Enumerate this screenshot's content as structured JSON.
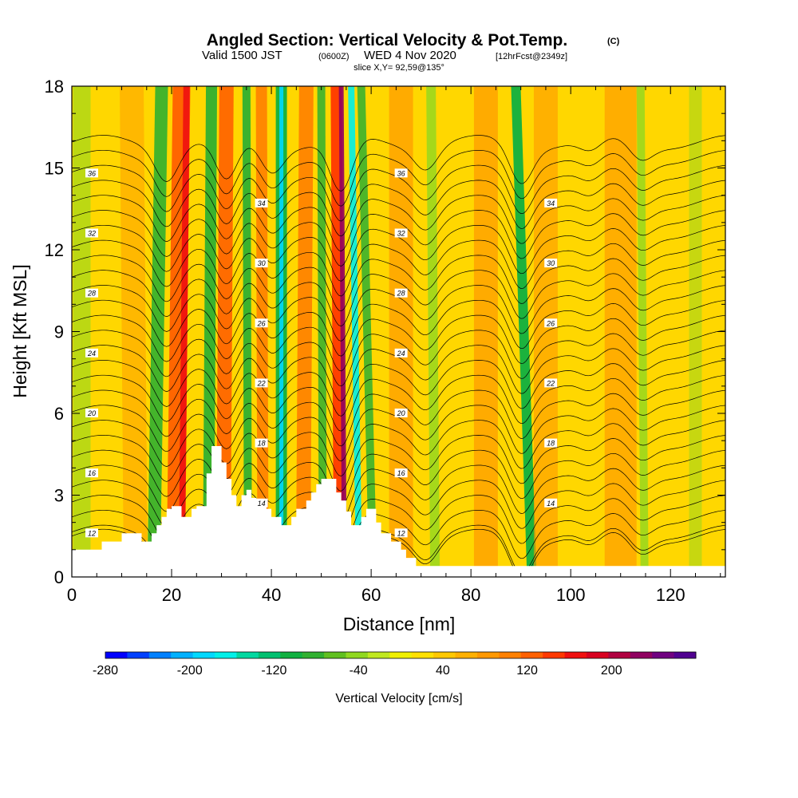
{
  "chart_data": {
    "type": "heatmap",
    "title": "Angled Section: Vertical Velocity & Pot.Temp.",
    "title_units": "(C)",
    "subtitle_prefix": "Valid 1500 JST",
    "subtitle_z": "(0600Z)",
    "subtitle_mid": "WED 4 Nov 2020",
    "subtitle_fcst": "[12hrFcst@2349z]",
    "slice": "slice X,Y= 92,59@135°",
    "xlabel": "Distance [nm]",
    "ylabel": "Height [Kft MSL]",
    "xlim": [
      0,
      131
    ],
    "ylim": [
      0,
      18
    ],
    "x_ticks": [
      "0",
      "20",
      "40",
      "60",
      "80",
      "100",
      "120"
    ],
    "y_ticks": [
      "0",
      "3",
      "6",
      "9",
      "12",
      "15",
      "18"
    ],
    "colorbar": {
      "label": "Vertical Velocity [cm/s]",
      "range": [
        -280,
        280
      ],
      "ticks": [
        "-280",
        "-200",
        "-120",
        "-40",
        "40",
        "120",
        "200"
      ],
      "colors": [
        "#0000ff",
        "#0040ff",
        "#0080ff",
        "#00b0ff",
        "#00d8ff",
        "#00f0e8",
        "#00d8a0",
        "#00c070",
        "#10b040",
        "#30b030",
        "#60c020",
        "#90d820",
        "#c0e820",
        "#f0f000",
        "#ffe000",
        "#ffc800",
        "#ffb000",
        "#ff9800",
        "#ff8000",
        "#ff6000",
        "#ff3800",
        "#f01010",
        "#d80020",
        "#b00040",
        "#900060",
        "#700080",
        "#500090"
      ]
    },
    "contours": {
      "field": "Potential Temperature (C)",
      "labels": [
        "12",
        "14",
        "16",
        "18",
        "20",
        "22",
        "24",
        "26",
        "28",
        "30",
        "32",
        "34",
        "36"
      ]
    },
    "colors": {
      "background_field": "#ffd700",
      "terrain": "#ffffff"
    }
  }
}
